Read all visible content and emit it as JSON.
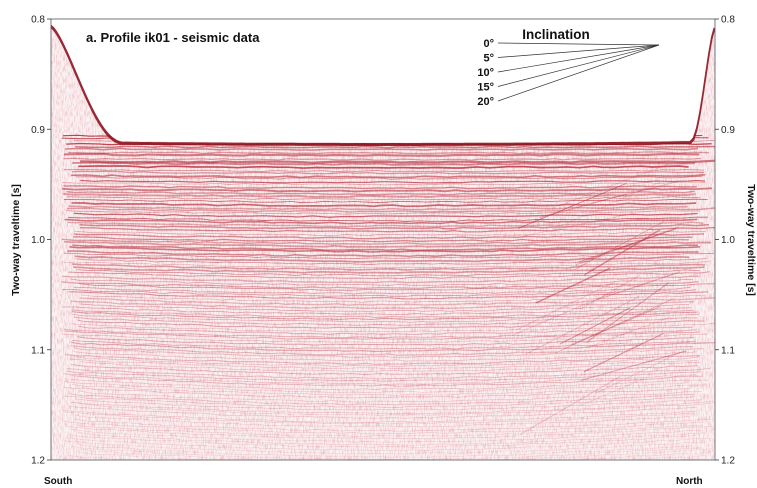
{
  "chart_data": {
    "type": "heatmap",
    "title": "a. Profile ik01 - seismic data",
    "ylabel_left": "Two-way traveltime [s]",
    "ylabel_right": "Two-way traveltime [s]",
    "y_ticks": [
      "0.8",
      "0.9",
      "1.0",
      "1.1",
      "1.2"
    ],
    "y_tick_values": [
      0.8,
      0.9,
      1.0,
      1.1,
      1.2
    ],
    "ylim": [
      0.8,
      1.2
    ],
    "y_inverted": true,
    "x_labels": {
      "left": "South",
      "right": "North"
    },
    "inclination": {
      "title": "Inclination",
      "angles": [
        0,
        5,
        10,
        15,
        20
      ],
      "labels": [
        "0°",
        "5°",
        "10°",
        "15°",
        "20°"
      ]
    },
    "colors": {
      "reflector": "#b3202e",
      "faint": "#e9b4ba",
      "background": "#ffffff"
    }
  }
}
